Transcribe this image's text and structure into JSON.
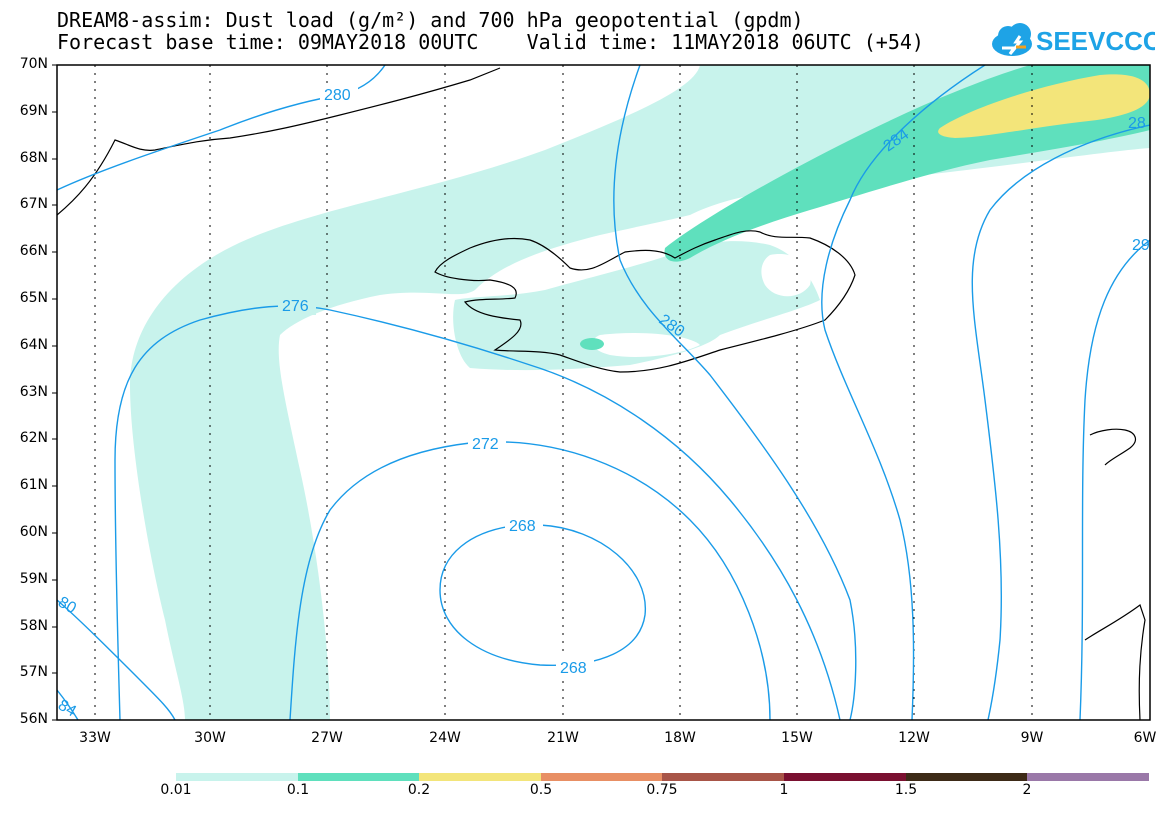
{
  "header": {
    "title_line1": "DREAM8-assim: Dust load (g/m²) and 700 hPa geopotential (gpdm)",
    "title_line2": "Forecast base time: 09MAY2018 00UTC    Valid time: 11MAY2018 06UTC (+54)"
  },
  "logo": {
    "text": "SEEVCCC",
    "icon": "cloud-icon",
    "color": "#1ea3e6"
  },
  "axes": {
    "lat_labels": [
      "70N",
      "69N",
      "68N",
      "67N",
      "66N",
      "65N",
      "64N",
      "63N",
      "62N",
      "61N",
      "60N",
      "59N",
      "58N",
      "57N",
      "56N"
    ],
    "lon_labels": [
      "33W",
      "30W",
      "27W",
      "24W",
      "21W",
      "18W",
      "15W",
      "12W",
      "9W",
      "6W"
    ]
  },
  "contours": {
    "color": "#1a9be8",
    "labels": [
      "280",
      "276",
      "272",
      "268",
      "268",
      "280",
      "284",
      "28",
      "29",
      "80",
      "84"
    ]
  },
  "colorbar": {
    "colors": [
      "#c8f3ec",
      "#5fe0bd",
      "#f3e57a",
      "#e88f64",
      "#a85548",
      "#7a1030",
      "#3d2a17",
      "#9a78a8"
    ],
    "tick_labels": [
      "0.01",
      "0.1",
      "0.2",
      "0.5",
      "0.75",
      "1",
      "1.5",
      "2"
    ]
  },
  "dust_colors": {
    "low": "#c8f3ec",
    "mid": "#5fe0bd",
    "high": "#f3e57a"
  }
}
